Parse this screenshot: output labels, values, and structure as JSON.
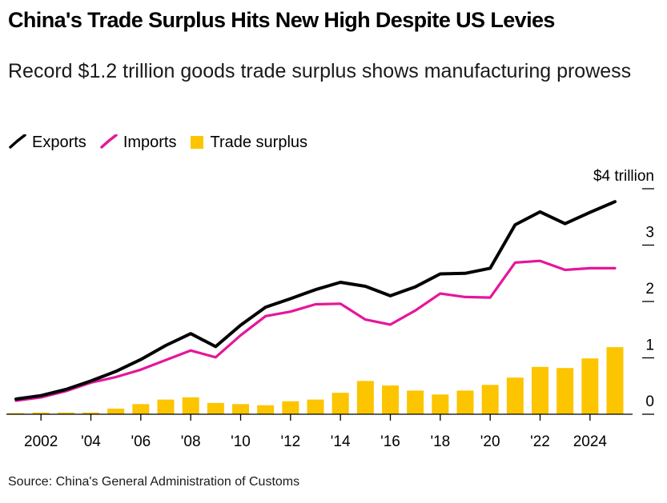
{
  "title": "China's Trade Surplus Hits New High Despite US Levies",
  "subtitle": "Record $1.2 trillion goods trade surplus shows manufacturing prowess",
  "source": "Source: China's General Administration of Customs",
  "colors": {
    "exports": "#000000",
    "imports": "#e5169b",
    "surplus": "#fcc500"
  },
  "chart_data": {
    "type": "bar",
    "title": "China's Trade Surplus Hits New High Despite US Levies",
    "subtitle": "Record $1.2 trillion goods trade surplus shows manufacturing prowess",
    "xlabel": "",
    "ylabel": "",
    "ylim": [
      0,
      4
    ],
    "y_unit_label": "$4 trillion",
    "legend_position": "top-left",
    "x": [
      2001,
      2002,
      2003,
      2004,
      2005,
      2006,
      2007,
      2008,
      2009,
      2010,
      2011,
      2012,
      2013,
      2014,
      2015,
      2016,
      2017,
      2018,
      2019,
      2020,
      2021,
      2022,
      2023,
      2024,
      2025
    ],
    "x_ticks": [
      {
        "value": 2002,
        "label": "2002"
      },
      {
        "value": 2004,
        "label": "'04"
      },
      {
        "value": 2006,
        "label": "'06"
      },
      {
        "value": 2008,
        "label": "'08"
      },
      {
        "value": 2010,
        "label": "'10"
      },
      {
        "value": 2012,
        "label": "'12"
      },
      {
        "value": 2014,
        "label": "'14"
      },
      {
        "value": 2016,
        "label": "'16"
      },
      {
        "value": 2018,
        "label": "'18"
      },
      {
        "value": 2020,
        "label": "'20"
      },
      {
        "value": 2022,
        "label": "'22"
      },
      {
        "value": 2024,
        "label": "2024"
      }
    ],
    "y_ticks": [
      {
        "value": 0,
        "label": "0"
      },
      {
        "value": 1,
        "label": "1"
      },
      {
        "value": 2,
        "label": "2"
      },
      {
        "value": 3,
        "label": "3"
      },
      {
        "value": 4,
        "label": "$4 trillion"
      }
    ],
    "legend": [
      {
        "key": "exports",
        "label": "Exports",
        "kind": "line"
      },
      {
        "key": "imports",
        "label": "Imports",
        "kind": "line"
      },
      {
        "key": "surplus",
        "label": "Trade surplus",
        "kind": "bar"
      }
    ],
    "series": [
      {
        "key": "exports",
        "name": "Exports",
        "type": "line",
        "values": [
          0.27,
          0.33,
          0.44,
          0.59,
          0.76,
          0.97,
          1.22,
          1.43,
          1.2,
          1.58,
          1.9,
          2.05,
          2.21,
          2.34,
          2.27,
          2.1,
          2.26,
          2.49,
          2.5,
          2.59,
          3.36,
          3.59,
          3.38,
          3.58,
          3.77
        ]
      },
      {
        "key": "imports",
        "name": "Imports",
        "type": "line",
        "values": [
          0.24,
          0.3,
          0.41,
          0.56,
          0.66,
          0.79,
          0.96,
          1.13,
          1.01,
          1.4,
          1.74,
          1.82,
          1.95,
          1.96,
          1.68,
          1.59,
          1.84,
          2.14,
          2.08,
          2.07,
          2.69,
          2.72,
          2.56,
          2.59,
          2.59
        ]
      },
      {
        "key": "surplus",
        "name": "Trade surplus",
        "type": "bar",
        "values": [
          0.02,
          0.03,
          0.03,
          0.03,
          0.1,
          0.18,
          0.26,
          0.3,
          0.2,
          0.18,
          0.16,
          0.23,
          0.26,
          0.38,
          0.59,
          0.51,
          0.42,
          0.35,
          0.42,
          0.52,
          0.65,
          0.84,
          0.82,
          0.99,
          1.19
        ]
      }
    ]
  }
}
